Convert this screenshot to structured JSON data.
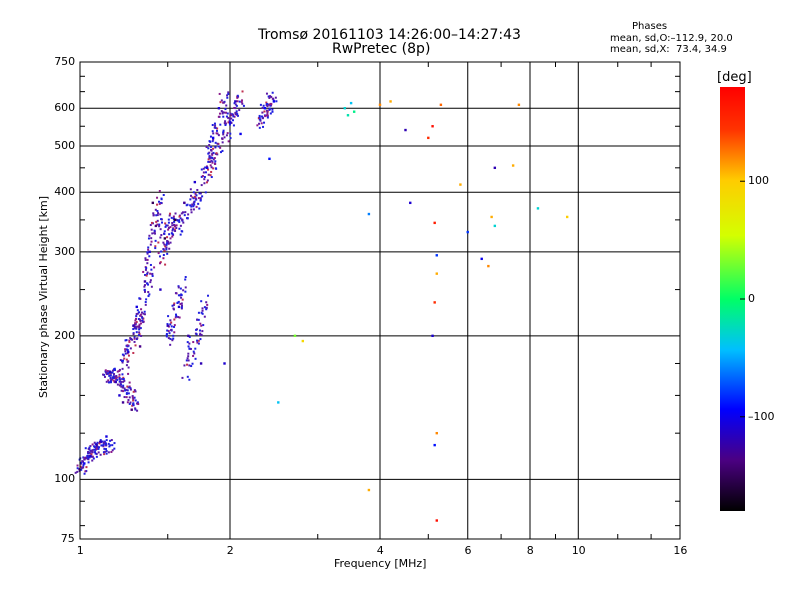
{
  "header": {
    "title_line1": "Tromsø 20161103 14:26:00–14:27:43",
    "title_line2": "RwPretec (8p)"
  },
  "stats": {
    "heading": "Phases",
    "o_line": "mean, sd,O:–112.9, 20.0",
    "x_line": "mean, sd,X:  73.4, 34.9"
  },
  "colorbar": {
    "unit_label": "[deg]",
    "ticks": [
      {
        "label": "100",
        "value": 100
      },
      {
        "label": "0",
        "value": 0
      },
      {
        "label": "–100",
        "value": -100
      }
    ],
    "range": [
      -180,
      180
    ]
  },
  "chart_data": {
    "type": "scatter",
    "xlabel": "Frequency [MHz]",
    "ylabel": "Stationary phase Virtual Height [km]",
    "x_scale": "log",
    "y_scale": "log",
    "xlim": [
      1,
      16
    ],
    "ylim": [
      75,
      750
    ],
    "x_ticks": [
      {
        "label": "1",
        "value": 1
      },
      {
        "label": "2",
        "value": 2
      },
      {
        "label": "4",
        "value": 4
      },
      {
        "label": "6",
        "value": 6
      },
      {
        "label": "8",
        "value": 8
      },
      {
        "label": "10",
        "value": 10
      },
      {
        "label": "16",
        "value": 16
      }
    ],
    "y_ticks": [
      {
        "label": "750",
        "value": 750
      },
      {
        "label": "600",
        "value": 600
      },
      {
        "label": "500",
        "value": 500
      },
      {
        "label": "400",
        "value": 400
      },
      {
        "label": "300",
        "value": 300
      },
      {
        "label": "200",
        "value": 200
      },
      {
        "label": "100",
        "value": 100
      },
      {
        "label": "75",
        "value": 75
      }
    ],
    "x_gridlines": [
      2,
      4,
      6,
      8,
      10
    ],
    "y_gridlines": [
      100,
      200,
      300,
      400,
      500,
      600
    ],
    "trace_segments": [
      {
        "x": [
          1.0,
          1.06
        ],
        "y": [
          105,
          115
        ]
      },
      {
        "x": [
          1.06,
          1.16
        ],
        "y": [
          115,
          118
        ]
      },
      {
        "x": [
          1.12,
          1.2
        ],
        "y": [
          165,
          165
        ]
      },
      {
        "x": [
          1.2,
          1.3
        ],
        "y": [
          165,
          140
        ]
      },
      {
        "x": [
          1.22,
          1.32
        ],
        "y": [
          170,
          220
        ]
      },
      {
        "x": [
          1.3,
          1.38
        ],
        "y": [
          200,
          275
        ]
      },
      {
        "x": [
          1.38,
          1.45
        ],
        "y": [
          280,
          395
        ]
      },
      {
        "x": [
          1.45,
          1.55
        ],
        "y": [
          290,
          360
        ]
      },
      {
        "x": [
          1.5,
          1.62
        ],
        "y": [
          195,
          260
        ]
      },
      {
        "x": [
          1.55,
          1.72
        ],
        "y": [
          330,
          400
        ]
      },
      {
        "x": [
          1.62,
          1.8
        ],
        "y": [
          165,
          240
        ]
      },
      {
        "x": [
          1.7,
          1.9
        ],
        "y": [
          380,
          500
        ]
      },
      {
        "x": [
          1.82,
          1.95
        ],
        "y": [
          470,
          640
        ]
      },
      {
        "x": [
          1.95,
          2.1
        ],
        "y": [
          520,
          640
        ]
      },
      {
        "x": [
          2.3,
          2.45
        ],
        "y": [
          560,
          640
        ]
      }
    ],
    "points": [
      {
        "x": 1.02,
        "y": 108,
        "phase": -100
      },
      {
        "x": 1.05,
        "y": 112,
        "phase": -110
      },
      {
        "x": 1.08,
        "y": 118,
        "phase": -120
      },
      {
        "x": 1.1,
        "y": 120,
        "phase": -115
      },
      {
        "x": 1.13,
        "y": 123,
        "phase": -105
      },
      {
        "x": 1.15,
        "y": 168,
        "phase": -115
      },
      {
        "x": 1.18,
        "y": 160,
        "phase": -120
      },
      {
        "x": 1.2,
        "y": 150,
        "phase": -110
      },
      {
        "x": 1.22,
        "y": 145,
        "phase": -130
      },
      {
        "x": 1.25,
        "y": 185,
        "phase": -110
      },
      {
        "x": 1.27,
        "y": 140,
        "phase": -140
      },
      {
        "x": 1.28,
        "y": 210,
        "phase": -120
      },
      {
        "x": 1.3,
        "y": 230,
        "phase": -105
      },
      {
        "x": 1.32,
        "y": 190,
        "phase": -135
      },
      {
        "x": 1.35,
        "y": 260,
        "phase": -125
      },
      {
        "x": 1.38,
        "y": 300,
        "phase": -110
      },
      {
        "x": 1.4,
        "y": 380,
        "phase": -150
      },
      {
        "x": 1.42,
        "y": 340,
        "phase": -140
      },
      {
        "x": 1.45,
        "y": 250,
        "phase": -115
      },
      {
        "x": 1.48,
        "y": 320,
        "phase": -155
      },
      {
        "x": 1.5,
        "y": 210,
        "phase": -120
      },
      {
        "x": 1.55,
        "y": 350,
        "phase": -160
      },
      {
        "x": 1.58,
        "y": 230,
        "phase": -110
      },
      {
        "x": 1.62,
        "y": 380,
        "phase": -130
      },
      {
        "x": 1.65,
        "y": 200,
        "phase": -125
      },
      {
        "x": 1.7,
        "y": 420,
        "phase": -110
      },
      {
        "x": 1.75,
        "y": 175,
        "phase": -120
      },
      {
        "x": 1.8,
        "y": 450,
        "phase": -105
      },
      {
        "x": 1.85,
        "y": 520,
        "phase": -100
      },
      {
        "x": 1.9,
        "y": 600,
        "phase": -110
      },
      {
        "x": 1.95,
        "y": 175,
        "phase": -110
      },
      {
        "x": 2.0,
        "y": 560,
        "phase": -105
      },
      {
        "x": 2.05,
        "y": 620,
        "phase": -115
      },
      {
        "x": 2.1,
        "y": 530,
        "phase": -100
      },
      {
        "x": 2.35,
        "y": 600,
        "phase": -95
      },
      {
        "x": 2.4,
        "y": 470,
        "phase": -90
      },
      {
        "x": 2.45,
        "y": 620,
        "phase": -100
      },
      {
        "x": 2.5,
        "y": 145,
        "phase": -40
      },
      {
        "x": 2.7,
        "y": 200,
        "phase": 30
      },
      {
        "x": 2.8,
        "y": 195,
        "phase": 90
      },
      {
        "x": 3.4,
        "y": 600,
        "phase": -30
      },
      {
        "x": 3.45,
        "y": 580,
        "phase": -20
      },
      {
        "x": 3.5,
        "y": 615,
        "phase": -40
      },
      {
        "x": 3.55,
        "y": 590,
        "phase": -10
      },
      {
        "x": 3.8,
        "y": 360,
        "phase": -60
      },
      {
        "x": 3.8,
        "y": 95,
        "phase": 110
      },
      {
        "x": 4.0,
        "y": 610,
        "phase": 120
      },
      {
        "x": 4.2,
        "y": 620,
        "phase": 110
      },
      {
        "x": 4.5,
        "y": 540,
        "phase": -120
      },
      {
        "x": 4.6,
        "y": 380,
        "phase": -110
      },
      {
        "x": 5.0,
        "y": 520,
        "phase": 150
      },
      {
        "x": 5.1,
        "y": 550,
        "phase": 170
      },
      {
        "x": 5.15,
        "y": 345,
        "phase": 160
      },
      {
        "x": 5.2,
        "y": 295,
        "phase": -80
      },
      {
        "x": 5.2,
        "y": 270,
        "phase": 110
      },
      {
        "x": 5.15,
        "y": 235,
        "phase": 150
      },
      {
        "x": 5.1,
        "y": 200,
        "phase": -110
      },
      {
        "x": 5.2,
        "y": 125,
        "phase": 120
      },
      {
        "x": 5.15,
        "y": 118,
        "phase": -90
      },
      {
        "x": 5.2,
        "y": 82,
        "phase": 170
      },
      {
        "x": 5.3,
        "y": 610,
        "phase": 130
      },
      {
        "x": 5.8,
        "y": 415,
        "phase": 110
      },
      {
        "x": 6.0,
        "y": 330,
        "phase": -80
      },
      {
        "x": 6.4,
        "y": 290,
        "phase": -100
      },
      {
        "x": 6.6,
        "y": 280,
        "phase": 120
      },
      {
        "x": 6.7,
        "y": 355,
        "phase": 110
      },
      {
        "x": 6.8,
        "y": 340,
        "phase": -30
      },
      {
        "x": 6.8,
        "y": 450,
        "phase": -120
      },
      {
        "x": 7.4,
        "y": 455,
        "phase": 110
      },
      {
        "x": 7.6,
        "y": 610,
        "phase": 120
      },
      {
        "x": 8.3,
        "y": 370,
        "phase": -30
      },
      {
        "x": 9.5,
        "y": 355,
        "phase": 100
      }
    ]
  }
}
